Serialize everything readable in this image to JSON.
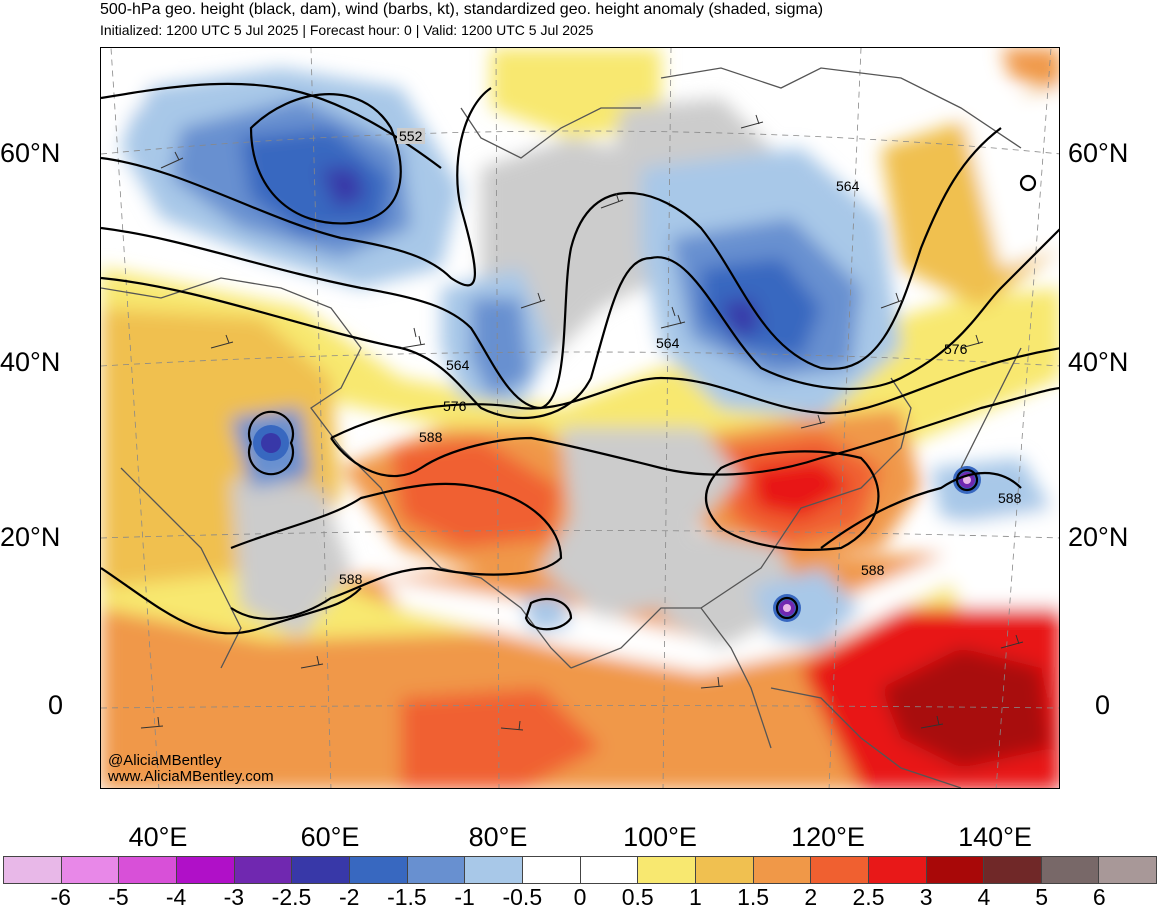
{
  "header": {
    "title": "500-hPa geo. height (black, dam), wind (barbs, kt), standardized geo. height anomaly (shaded, sigma)",
    "subtitle": "Initialized: 1200 UTC 5 Jul 2025 | Forecast hour: 0 | Valid: 1200 UTC 5 Jul 2025"
  },
  "axes": {
    "lat_labels": [
      "60°N",
      "40°N",
      "20°N",
      "0"
    ],
    "lon_labels": [
      "40°E",
      "60°E",
      "80°E",
      "100°E",
      "120°E",
      "140°E"
    ]
  },
  "contour_labels": [
    "552",
    "564",
    "564",
    "564",
    "576",
    "576",
    "588",
    "588",
    "588",
    "588"
  ],
  "credits": {
    "handle": "@AliciaMBentley",
    "site": "www.AliciaMBentley.com"
  },
  "colorbar": {
    "colors": [
      "#e8b8e8",
      "#e888e8",
      "#d850d8",
      "#b010c8",
      "#7028b0",
      "#3838a8",
      "#3868c0",
      "#6890d0",
      "#a8c8e8",
      "#ffffff",
      "#ffffff",
      "#f8e870",
      "#f0c050",
      "#f09848",
      "#f06030",
      "#e81818",
      "#a80808",
      "#702828",
      "#786868",
      "#a89898"
    ],
    "labels": [
      "-6",
      "-5",
      "-4",
      "-3",
      "-2.5",
      "-2",
      "-1.5",
      "-1",
      "-0.5",
      "0",
      "0.5",
      "1",
      "1.5",
      "2",
      "2.5",
      "3",
      "4",
      "5",
      "6"
    ]
  }
}
